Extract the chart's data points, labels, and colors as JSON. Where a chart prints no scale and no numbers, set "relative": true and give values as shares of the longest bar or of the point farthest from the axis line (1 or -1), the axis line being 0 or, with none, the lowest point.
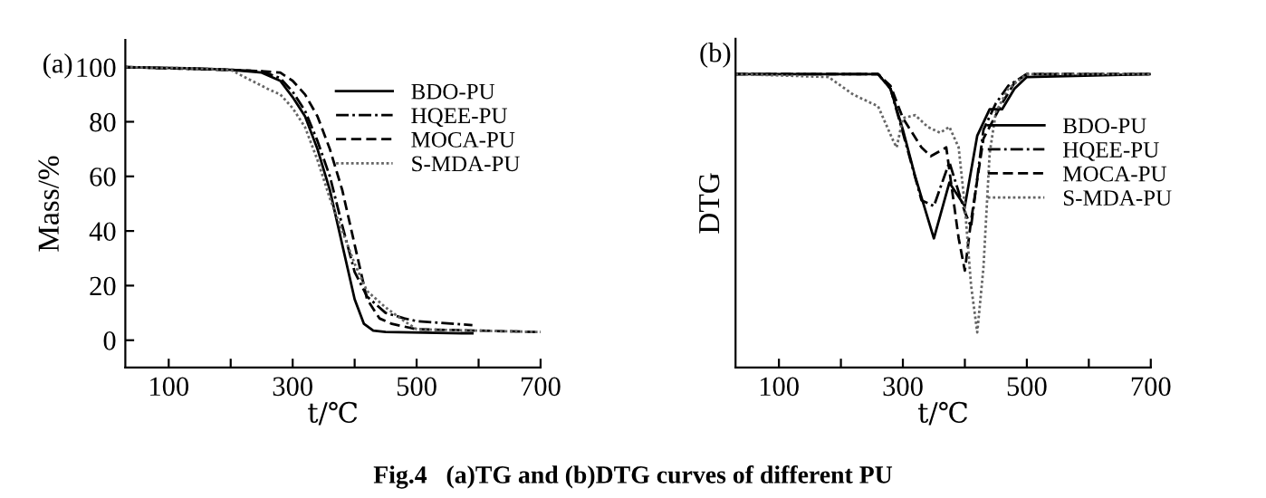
{
  "chart_data": [
    {
      "type": "line",
      "title": "(a)",
      "xlabel": "t/℃",
      "ylabel": "Mass/%",
      "xlim": [
        30,
        700
      ],
      "ylim": [
        -10,
        110
      ],
      "xticks": [
        100,
        {
          "value": 200,
          "label": null
        },
        300,
        {
          "value": 400,
          "label": null
        },
        500,
        {
          "value": 600,
          "label": null
        },
        700
      ],
      "yticks": [
        0,
        20,
        40,
        60,
        80,
        100
      ],
      "grid": false,
      "legend": "top right",
      "annotations": [
        "Fig.4   (a)TG and (b)DTG curves of different PU"
      ],
      "series": [
        {
          "name": "BDO-PU",
          "color": "#000000",
          "line_style": "solid",
          "x": [
            30,
            150,
            200,
            250,
            280,
            300,
            320,
            340,
            360,
            380,
            400,
            415,
            430,
            450,
            590
          ],
          "values": [
            100,
            99.5,
            99,
            98,
            95,
            89,
            82,
            70,
            55,
            35,
            15,
            6,
            3.5,
            3,
            2.5
          ]
        },
        {
          "name": "HQEE-PU",
          "color": "#000000",
          "line_style": "dashdot",
          "x": [
            30,
            200,
            250,
            280,
            300,
            320,
            340,
            360,
            380,
            400,
            420,
            450,
            480,
            500,
            590
          ],
          "values": [
            100,
            99,
            98.5,
            96,
            91,
            84,
            73,
            60,
            42,
            25,
            16,
            10,
            8,
            7,
            5.5
          ]
        },
        {
          "name": "MOCA-PU",
          "color": "#000000",
          "line_style": "dashed",
          "x": [
            30,
            200,
            250,
            280,
            300,
            320,
            340,
            360,
            380,
            400,
            420,
            440,
            460,
            500,
            700
          ],
          "values": [
            100,
            99,
            98.5,
            98,
            95,
            90,
            82,
            70,
            55,
            35,
            15,
            8,
            6,
            4,
            3
          ]
        },
        {
          "name": "S-MDA-PU",
          "color": "#666666",
          "line_style": "dotted",
          "x": [
            30,
            150,
            200,
            260,
            280,
            300,
            320,
            340,
            360,
            380,
            400,
            420,
            450,
            480,
            500,
            700
          ],
          "values": [
            100,
            99.5,
            99,
            92,
            90,
            85,
            78,
            66,
            52,
            40,
            28,
            18,
            12,
            7,
            4,
            3
          ]
        }
      ]
    },
    {
      "type": "line",
      "title": "(b)",
      "xlabel": "t/℃",
      "ylabel": "DTG",
      "relative": true,
      "xlim": [
        30,
        700
      ],
      "tick_labels": "x",
      "xticks": [
        100,
        {
          "value": 200,
          "label": null
        },
        300,
        {
          "value": 400,
          "label": null
        },
        500,
        {
          "value": 600,
          "label": null
        },
        700
      ],
      "grid": false,
      "legend": "right",
      "series": [
        {
          "name": "BDO-PU",
          "color": "#000000",
          "line_style": "solid",
          "x": [
            30,
            260,
            280,
            300,
            320,
            350,
            375,
            400,
            420,
            440,
            460,
            480,
            500,
            700
          ],
          "values": [
            1,
            1,
            0.95,
            0.81,
            0.65,
            0.44,
            0.63,
            0.55,
            0.79,
            0.88,
            0.88,
            0.95,
            0.99,
            1
          ]
        },
        {
          "name": "HQEE-PU",
          "color": "#000000",
          "line_style": "dashdot",
          "x": [
            30,
            260,
            280,
            300,
            330,
            350,
            375,
            400,
            410,
            430,
            450,
            470,
            500,
            700
          ],
          "values": [
            1,
            1,
            0.95,
            0.8,
            0.57,
            0.55,
            0.7,
            0.53,
            0.48,
            0.81,
            0.9,
            0.96,
            1,
            1
          ]
        },
        {
          "name": "MOCA-PU",
          "color": "#000000",
          "line_style": "dashed",
          "x": [
            30,
            260,
            280,
            300,
            330,
            345,
            370,
            390,
            400,
            410,
            430,
            460,
            480,
            500,
            700
          ],
          "values": [
            1,
            1,
            0.96,
            0.85,
            0.75,
            0.72,
            0.75,
            0.44,
            0.33,
            0.5,
            0.78,
            0.9,
            0.97,
            1,
            1
          ]
        },
        {
          "name": "S-MDA-PU",
          "color": "#666666",
          "line_style": "dotted",
          "x": [
            30,
            180,
            220,
            260,
            285,
            290,
            300,
            320,
            340,
            360,
            375,
            390,
            400,
            410,
            420,
            430,
            440,
            450,
            470,
            500,
            700
          ],
          "values": [
            1,
            0.99,
            0.93,
            0.89,
            0.77,
            0.75,
            0.85,
            0.86,
            0.82,
            0.8,
            0.82,
            0.75,
            0.55,
            0.28,
            0.12,
            0.34,
            0.73,
            0.87,
            0.95,
            1,
            1
          ]
        }
      ]
    }
  ]
}
